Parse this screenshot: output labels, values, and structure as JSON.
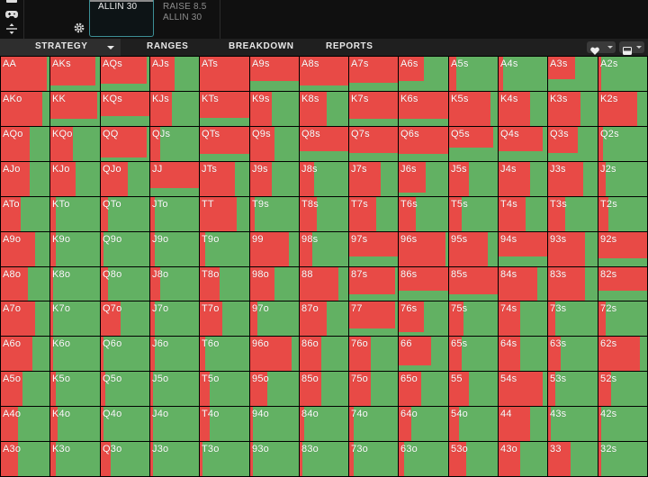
{
  "header": {
    "selected_action": "ALLIN 30",
    "other_actions": [
      "RAISE 8.5",
      "ALLIN 30"
    ]
  },
  "nav": {
    "tabs": [
      "STRATEGY",
      "RANGES",
      "BREAKDOWN",
      "REPORTS"
    ]
  },
  "colors": {
    "red_action": "#e84a46",
    "green_action": "#62b163"
  },
  "grid": {
    "rows": [
      [
        "AA",
        "AKs",
        "AQs",
        "AJs",
        "ATs",
        "A9s",
        "A8s",
        "A7s",
        "A6s",
        "A5s",
        "A4s",
        "A3s",
        "A2s"
      ],
      [
        "AKo",
        "KK",
        "KQs",
        "KJs",
        "KTs",
        "K9s",
        "K8s",
        "K7s",
        "K6s",
        "K5s",
        "K4s",
        "K3s",
        "K2s"
      ],
      [
        "AQo",
        "KQo",
        "QQ",
        "QJs",
        "QTs",
        "Q9s",
        "Q8s",
        "Q7s",
        "Q6s",
        "Q5s",
        "Q4s",
        "Q3s",
        "Q2s"
      ],
      [
        "AJo",
        "KJo",
        "QJo",
        "JJ",
        "JTs",
        "J9s",
        "J8s",
        "J7s",
        "J6s",
        "J5s",
        "J4s",
        "J3s",
        "J2s"
      ],
      [
        "ATo",
        "KTo",
        "QTo",
        "JTo",
        "TT",
        "T9s",
        "T8s",
        "T7s",
        "T6s",
        "T5s",
        "T4s",
        "T3s",
        "T2s"
      ],
      [
        "A9o",
        "K9o",
        "Q9o",
        "J9o",
        "T9o",
        "99",
        "98s",
        "97s",
        "96s",
        "95s",
        "94s",
        "93s",
        "92s"
      ],
      [
        "A8o",
        "K8o",
        "Q8o",
        "J8o",
        "T8o",
        "98o",
        "88",
        "87s",
        "86s",
        "85s",
        "84s",
        "83s",
        "82s"
      ],
      [
        "A7o",
        "K7o",
        "Q7o",
        "J7o",
        "T7o",
        "97o",
        "87o",
        "77",
        "76s",
        "75s",
        "74s",
        "73s",
        "72s"
      ],
      [
        "A6o",
        "K6o",
        "Q6o",
        "J6o",
        "T6o",
        "96o",
        "86o",
        "76o",
        "66",
        "65s",
        "64s",
        "63s",
        "62s"
      ],
      [
        "A5o",
        "K5o",
        "Q5o",
        "J5o",
        "T5o",
        "95o",
        "85o",
        "75o",
        "65o",
        "55",
        "54s",
        "53s",
        "52s"
      ],
      [
        "A4o",
        "K4o",
        "Q4o",
        "J4o",
        "T4o",
        "94o",
        "84o",
        "74o",
        "64o",
        "54o",
        "44",
        "43s",
        "42s"
      ],
      [
        "A3o",
        "K3o",
        "Q3o",
        "J3o",
        "T3o",
        "93o",
        "83o",
        "73o",
        "63o",
        "53o",
        "43o",
        "33",
        "32s"
      ]
    ],
    "mix": [
      [
        [
          0.95,
          1.0
        ],
        [
          0.9,
          0.85
        ],
        [
          0.95,
          0.8
        ],
        [
          0.5,
          1.0
        ],
        [
          1.0,
          1.0
        ],
        [
          1.0,
          0.7
        ],
        [
          1.0,
          0.85
        ],
        [
          1.0,
          0.75
        ],
        [
          0.5,
          0.7
        ],
        [
          0.15,
          1.0
        ],
        [
          0.1,
          1.0
        ],
        [
          0.55,
          0.65
        ],
        [
          0.05,
          1.0
        ]
      ],
      [
        [
          0.85,
          1.0
        ],
        [
          0.95,
          0.8
        ],
        [
          1.0,
          0.7
        ],
        [
          0.45,
          1.0
        ],
        [
          1.0,
          0.75
        ],
        [
          0.45,
          1.0
        ],
        [
          0.55,
          1.0
        ],
        [
          1.0,
          0.8
        ],
        [
          1.0,
          0.8
        ],
        [
          0.85,
          1.0
        ],
        [
          0.65,
          1.0
        ],
        [
          0.65,
          1.0
        ],
        [
          0.8,
          1.0
        ]
      ],
      [
        [
          0.6,
          1.0
        ],
        [
          0.45,
          1.0
        ],
        [
          0.95,
          0.9
        ],
        [
          0.2,
          1.0
        ],
        [
          1.0,
          0.8
        ],
        [
          0.5,
          1.0
        ],
        [
          1.0,
          0.7
        ],
        [
          1.0,
          0.75
        ],
        [
          1.0,
          0.8
        ],
        [
          0.9,
          0.6
        ],
        [
          0.9,
          0.7
        ],
        [
          0.6,
          0.75
        ],
        [
          0.1,
          1.0
        ]
      ],
      [
        [
          0.6,
          1.0
        ],
        [
          0.5,
          1.0
        ],
        [
          0.55,
          1.0
        ],
        [
          1.0,
          0.75
        ],
        [
          0.7,
          1.0
        ],
        [
          0.45,
          1.0
        ],
        [
          0.3,
          1.0
        ],
        [
          0.65,
          1.0
        ],
        [
          0.55,
          0.9
        ],
        [
          0.4,
          1.0
        ],
        [
          0.65,
          1.0
        ],
        [
          0.7,
          1.0
        ],
        [
          0.15,
          1.0
        ]
      ],
      [
        [
          0.4,
          1.0
        ],
        [
          0.1,
          1.0
        ],
        [
          0.15,
          1.0
        ],
        [
          0.1,
          1.0
        ],
        [
          0.75,
          1.0
        ],
        [
          0.1,
          1.0
        ],
        [
          0.35,
          1.0
        ],
        [
          0.55,
          1.0
        ],
        [
          0.35,
          1.0
        ],
        [
          0.25,
          1.0
        ],
        [
          0.55,
          1.0
        ],
        [
          0.35,
          1.0
        ],
        [
          0.2,
          1.0
        ]
      ],
      [
        [
          0.7,
          1.0
        ],
        [
          0.1,
          1.0
        ],
        [
          0.05,
          1.0
        ],
        [
          0.1,
          1.0
        ],
        [
          0.1,
          1.0
        ],
        [
          0.8,
          1.0
        ],
        [
          0.25,
          1.0
        ],
        [
          1.0,
          0.7
        ],
        [
          0.95,
          1.0
        ],
        [
          0.8,
          1.0
        ],
        [
          1.0,
          0.7
        ],
        [
          0.75,
          1.0
        ],
        [
          1.0,
          0.75
        ]
      ],
      [
        [
          0.55,
          1.0
        ],
        [
          0.05,
          1.0
        ],
        [
          0.15,
          1.0
        ],
        [
          0.2,
          1.0
        ],
        [
          0.4,
          1.0
        ],
        [
          0.5,
          1.0
        ],
        [
          0.8,
          1.0
        ],
        [
          0.95,
          0.8
        ],
        [
          1.0,
          0.7
        ],
        [
          1.0,
          0.8
        ],
        [
          0.8,
          1.0
        ],
        [
          0.75,
          1.0
        ],
        [
          1.0,
          0.7
        ]
      ],
      [
        [
          0.7,
          1.0
        ],
        [
          0.05,
          1.0
        ],
        [
          0.4,
          1.0
        ],
        [
          0.1,
          1.0
        ],
        [
          0.45,
          1.0
        ],
        [
          0.15,
          1.0
        ],
        [
          0.55,
          1.0
        ],
        [
          0.95,
          0.8
        ],
        [
          0.5,
          0.9
        ],
        [
          0.3,
          1.0
        ],
        [
          0.45,
          1.0
        ],
        [
          0.15,
          1.0
        ],
        [
          0.15,
          1.0
        ]
      ],
      [
        [
          0.65,
          1.0
        ],
        [
          0.05,
          1.0
        ],
        [
          0.05,
          1.0
        ],
        [
          0.1,
          1.0
        ],
        [
          0.1,
          1.0
        ],
        [
          0.85,
          1.0
        ],
        [
          0.45,
          1.0
        ],
        [
          0.45,
          1.0
        ],
        [
          0.65,
          0.85
        ],
        [
          0.25,
          1.0
        ],
        [
          0.45,
          1.0
        ],
        [
          0.25,
          1.0
        ],
        [
          0.85,
          1.0
        ]
      ],
      [
        [
          0.45,
          1.0
        ],
        [
          0.1,
          1.0
        ],
        [
          0.1,
          1.0
        ],
        [
          0.05,
          1.0
        ],
        [
          0.2,
          1.0
        ],
        [
          0.35,
          1.0
        ],
        [
          0.45,
          1.0
        ],
        [
          0.45,
          1.0
        ],
        [
          0.45,
          1.0
        ],
        [
          0.4,
          1.0
        ],
        [
          0.9,
          1.0
        ],
        [
          0.15,
          1.0
        ],
        [
          0.25,
          1.0
        ]
      ],
      [
        [
          0.35,
          1.0
        ],
        [
          0.15,
          1.0
        ],
        [
          0.05,
          1.0
        ],
        [
          0.05,
          1.0
        ],
        [
          0.2,
          1.0
        ],
        [
          0.05,
          1.0
        ],
        [
          0.1,
          1.0
        ],
        [
          0.1,
          1.0
        ],
        [
          0.25,
          1.0
        ],
        [
          0.2,
          1.0
        ],
        [
          0.65,
          1.0
        ],
        [
          0.05,
          1.0
        ],
        [
          0.05,
          1.0
        ]
      ],
      [
        [
          0.35,
          1.0
        ],
        [
          0.1,
          1.0
        ],
        [
          0.2,
          1.0
        ],
        [
          0.05,
          1.0
        ],
        [
          0.05,
          1.0
        ],
        [
          0.05,
          1.0
        ],
        [
          0.05,
          1.0
        ],
        [
          0.1,
          1.0
        ],
        [
          0.1,
          1.0
        ],
        [
          0.35,
          1.0
        ],
        [
          0.45,
          1.0
        ],
        [
          0.45,
          1.0
        ],
        [
          0.05,
          1.0
        ]
      ]
    ]
  }
}
